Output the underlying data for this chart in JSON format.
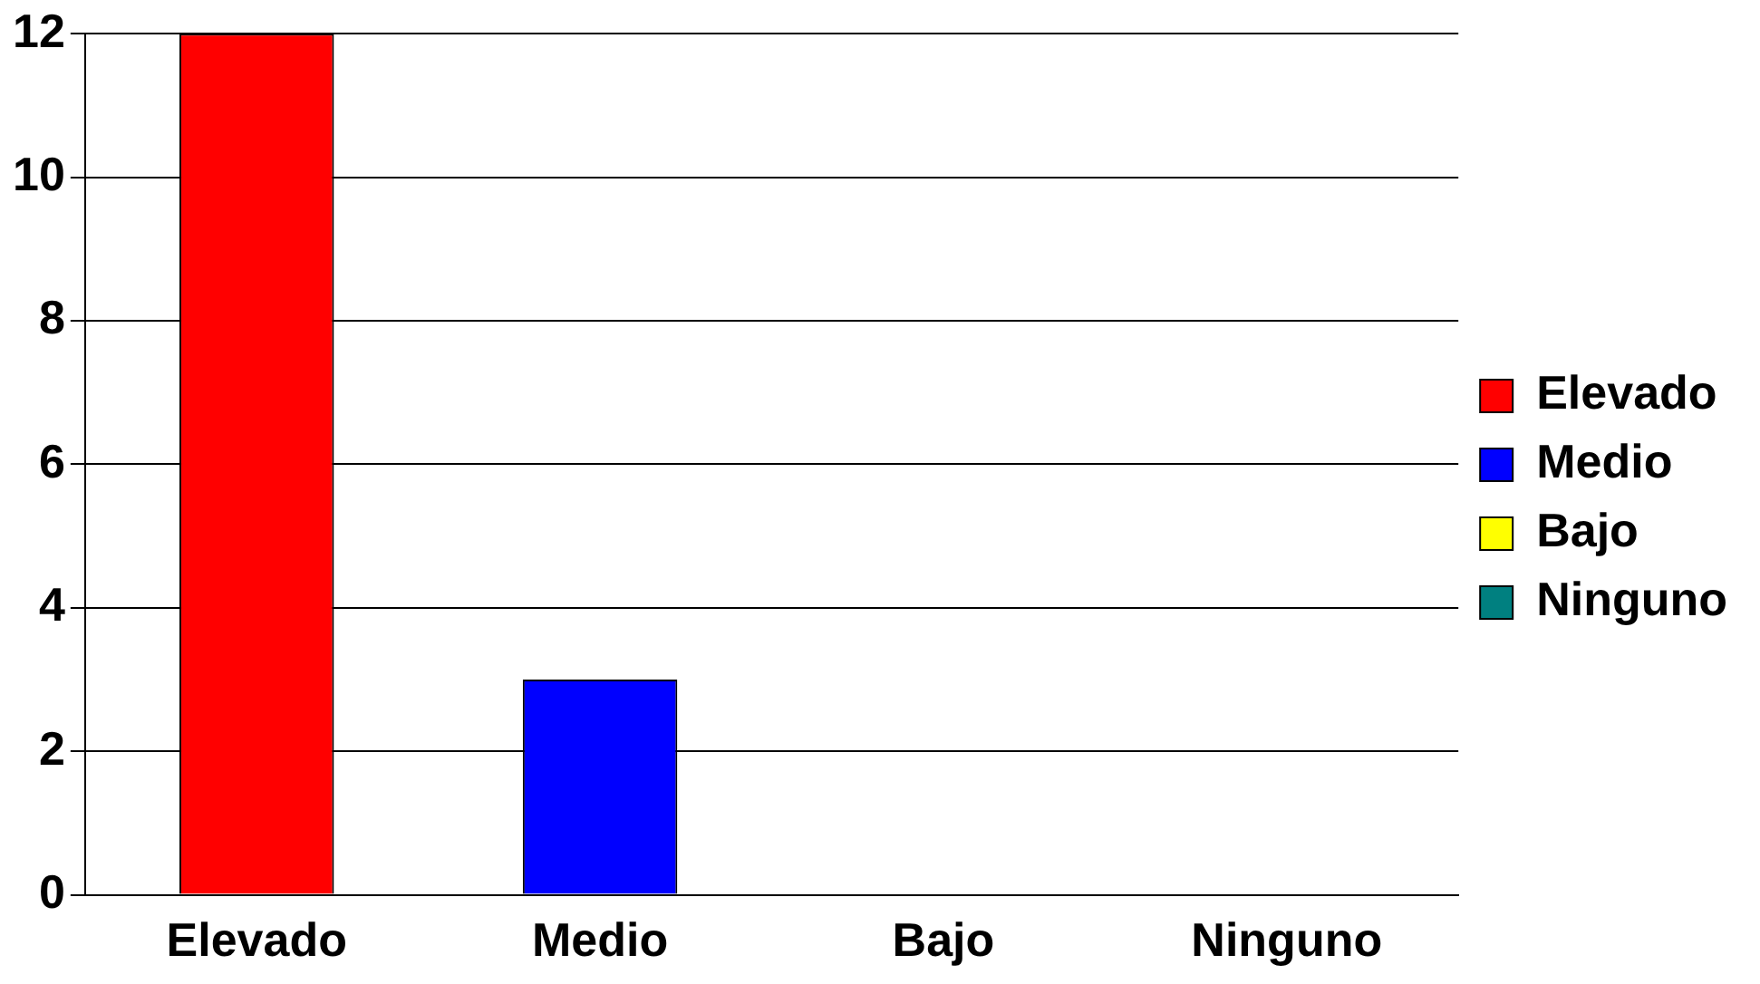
{
  "chart_data": {
    "type": "bar",
    "categories": [
      "Elevado",
      "Medio",
      "Bajo",
      "Ninguno"
    ],
    "series": [
      {
        "name": "Elevado",
        "color": "#ff0000",
        "values": [
          12,
          null,
          null,
          null
        ]
      },
      {
        "name": "Medio",
        "color": "#0000ff",
        "values": [
          null,
          3,
          null,
          null
        ]
      },
      {
        "name": "Bajo",
        "color": "#ffff00",
        "values": [
          null,
          null,
          0,
          null
        ]
      },
      {
        "name": "Ninguno",
        "color": "#008080",
        "values": [
          null,
          null,
          null,
          0
        ]
      }
    ],
    "ylim": [
      0,
      12
    ],
    "yticks": [
      0,
      2,
      4,
      6,
      8,
      10,
      12
    ],
    "grid": "y",
    "legend": "right"
  }
}
